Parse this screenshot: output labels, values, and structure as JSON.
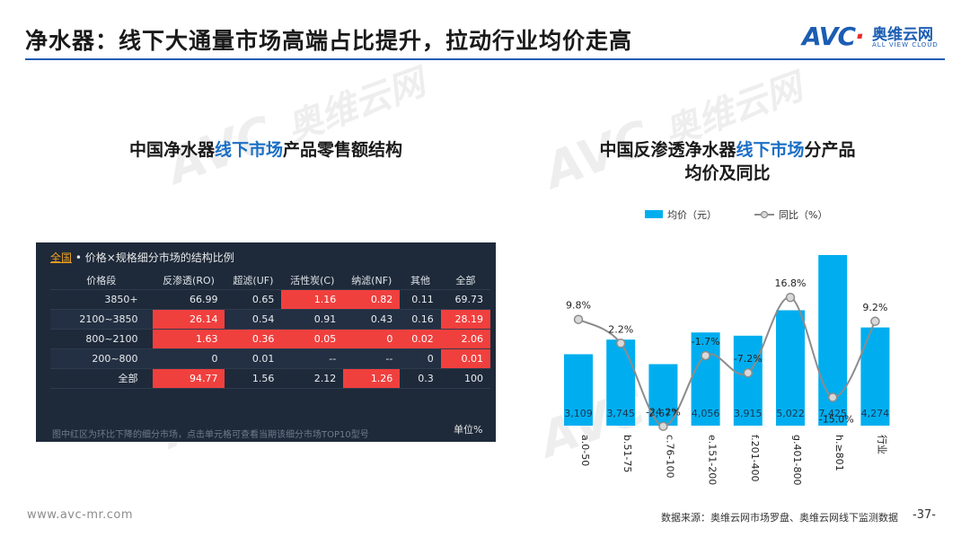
{
  "title": "净水器：线下大通量市场高端占比提升，拉动行业均价走高",
  "logo": {
    "mark_a": "AV",
    "mark_c": "C",
    "cn": "奥维云网",
    "en": "ALL VIEW CLOUD"
  },
  "left_panel": {
    "title_pre": "中国净水器",
    "title_hl": "线下市场",
    "title_post": "产品零售额结构",
    "table_header_scope": "全国",
    "table_header_rest": " • 价格×规格细分市场的结构比例",
    "columns": [
      "价格段",
      "反渗透(RO)",
      "超滤(UF)",
      "活性炭(C)",
      "纳滤(NF)",
      "其他",
      "全部"
    ],
    "rows": [
      {
        "label": "3850+",
        "cells": [
          "66.99",
          "0.65",
          "1.16",
          "0.82",
          "0.11",
          "69.73"
        ],
        "red": [
          false,
          false,
          true,
          true,
          false,
          false
        ]
      },
      {
        "label": "2100~3850",
        "cells": [
          "26.14",
          "0.54",
          "0.91",
          "0.43",
          "0.16",
          "28.19"
        ],
        "red": [
          true,
          false,
          false,
          false,
          false,
          true
        ]
      },
      {
        "label": "800~2100",
        "cells": [
          "1.63",
          "0.36",
          "0.05",
          "0",
          "0.02",
          "2.06"
        ],
        "red": [
          true,
          true,
          true,
          true,
          true,
          true
        ]
      },
      {
        "label": "200~800",
        "cells": [
          "0",
          "0.01",
          "--",
          "--",
          "0",
          "0.01"
        ],
        "red": [
          false,
          false,
          false,
          false,
          false,
          true
        ]
      },
      {
        "label": "全部",
        "cells": [
          "94.77",
          "1.56",
          "2.12",
          "1.26",
          "0.3",
          "100"
        ],
        "red": [
          true,
          false,
          false,
          true,
          false,
          false
        ]
      }
    ],
    "note": "图中红区为环比下降的细分市场，点击单元格可查看当期该细分市场TOP10型号",
    "unit": "单位%"
  },
  "right_panel": {
    "title_pre": "中国反渗透净水器",
    "title_hl": "线下市场",
    "title_post": "分产品",
    "title_line2": "均价及同比"
  },
  "chart_data": {
    "type": "bar",
    "categories": [
      "a.0-50",
      "b.51-75",
      "c.76-100",
      "e.151-200",
      "f.201-400",
      "g.401-800",
      "h.≥801",
      "行业"
    ],
    "series": [
      {
        "name": "均价（元）",
        "type": "bar",
        "values": [
          3109,
          3745,
          2677,
          4056,
          3915,
          5022,
          7425,
          4274
        ],
        "labels": [
          "3,109",
          "3,745",
          "2,677",
          "4,056",
          "3,915",
          "5,022",
          "7,425",
          "4,274"
        ]
      },
      {
        "name": "同比（%）",
        "type": "line",
        "values": [
          9.8,
          2.2,
          -24.2,
          -1.7,
          -7.2,
          16.8,
          -15.0,
          9.2
        ],
        "labels": [
          "9.8%",
          "2.2%",
          "-24.2%",
          "-1.7%",
          "-7.2%",
          "16.8%",
          "-15.0%",
          "9.2%"
        ]
      }
    ],
    "legend_position": "top-center",
    "colors": {
      "bar": "#00aeef",
      "line": "#8c8c8c",
      "marker_fill": "#d9d9d9"
    }
  },
  "footer": {
    "website": "www.avc-mr.com",
    "source": "数据来源：奥维云网市场罗盘、奥维云网线下监测数据",
    "page": "-37-"
  },
  "watermark": {
    "mark": "AVC",
    "cn": "奥维云网",
    "en": "ALL VIEW CLOUD"
  }
}
